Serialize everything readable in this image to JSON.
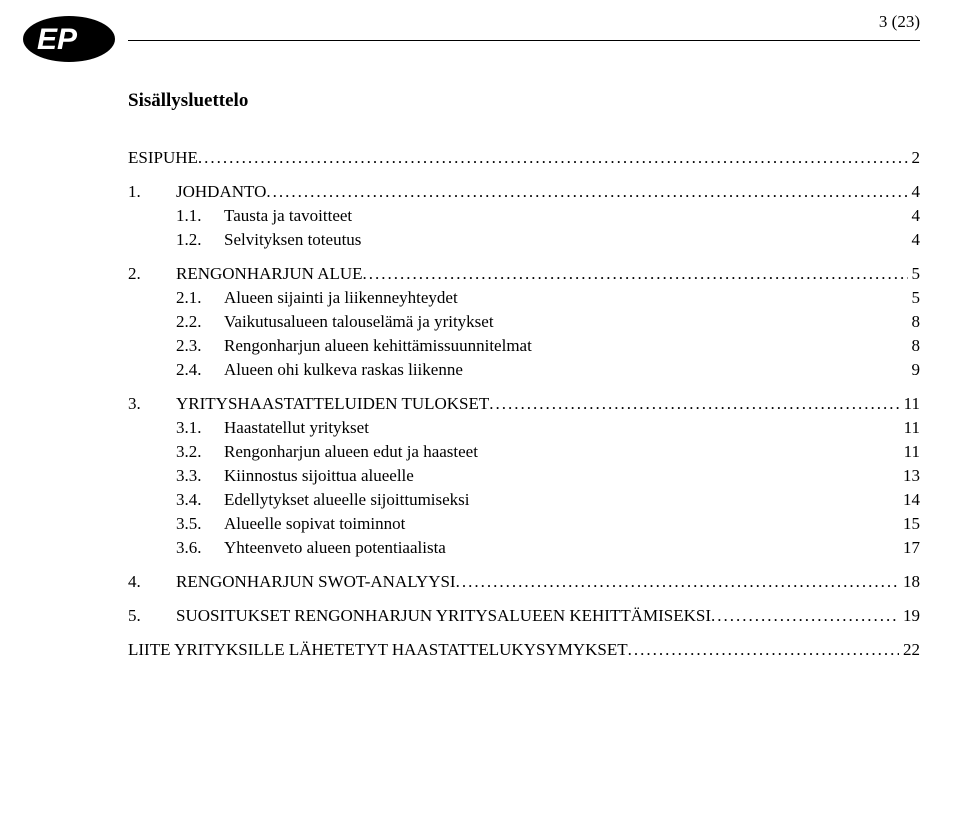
{
  "page_number_label": "3 (23)",
  "logo": {
    "text": "EP",
    "bg_color": "#000000",
    "fg_color": "#ffffff"
  },
  "heading": "Sisällysluettelo",
  "rule_color": "#000000",
  "toc": [
    {
      "level": 1,
      "num": "",
      "title": "ESIPUHE",
      "page": "2",
      "dotted": true
    },
    {
      "level": 1,
      "num": "1.",
      "title": "JOHDANTO",
      "page": "4",
      "dotted": true
    },
    {
      "level": 2,
      "num": "1.1.",
      "title": "Tausta ja tavoitteet",
      "page": "4",
      "dotted": false
    },
    {
      "level": 2,
      "num": "1.2.",
      "title": "Selvityksen toteutus",
      "page": "4",
      "dotted": false
    },
    {
      "level": 1,
      "num": "2.",
      "title": "RENGONHARJUN ALUE",
      "page": "5",
      "dotted": true
    },
    {
      "level": 2,
      "num": "2.1.",
      "title": "Alueen sijainti ja liikenneyhteydet",
      "page": "5",
      "dotted": false
    },
    {
      "level": 2,
      "num": "2.2.",
      "title": "Vaikutusalueen talouselämä ja yritykset",
      "page": "8",
      "dotted": false
    },
    {
      "level": 2,
      "num": "2.3.",
      "title": "Rengonharjun alueen kehittämissuunnitelmat",
      "page": "8",
      "dotted": false
    },
    {
      "level": 2,
      "num": "2.4.",
      "title": "Alueen ohi kulkeva raskas liikenne",
      "page": "9",
      "dotted": false
    },
    {
      "level": 1,
      "num": "3.",
      "title": "YRITYSHAASTATTELUIDEN TULOKSET",
      "page": "11",
      "dotted": true
    },
    {
      "level": 2,
      "num": "3.1.",
      "title": "Haastatellut yritykset",
      "page": "11",
      "dotted": false
    },
    {
      "level": 2,
      "num": "3.2.",
      "title": "Rengonharjun alueen edut ja haasteet",
      "page": "11",
      "dotted": false
    },
    {
      "level": 2,
      "num": "3.3.",
      "title": "Kiinnostus sijoittua alueelle",
      "page": "13",
      "dotted": false
    },
    {
      "level": 2,
      "num": "3.4.",
      "title": "Edellytykset alueelle sijoittumiseksi",
      "page": "14",
      "dotted": false
    },
    {
      "level": 2,
      "num": "3.5.",
      "title": "Alueelle sopivat toiminnot",
      "page": "15",
      "dotted": false
    },
    {
      "level": 2,
      "num": "3.6.",
      "title": "Yhteenveto alueen potentiaalista",
      "page": "17",
      "dotted": false
    },
    {
      "level": 1,
      "num": "4.",
      "title": "RENGONHARJUN SWOT-ANALYYSI",
      "page": "18",
      "dotted": true
    },
    {
      "level": 1,
      "num": "5.",
      "title": "SUOSITUKSET RENGONHARJUN YRITYSALUEEN KEHITTÄMISEKSI",
      "page": "19",
      "dotted": true
    },
    {
      "level": 1,
      "num": "",
      "title": "LIITE YRITYKSILLE LÄHETETYT HAASTATTELUKYSYMYKSET",
      "page": "22",
      "dotted": true
    }
  ]
}
